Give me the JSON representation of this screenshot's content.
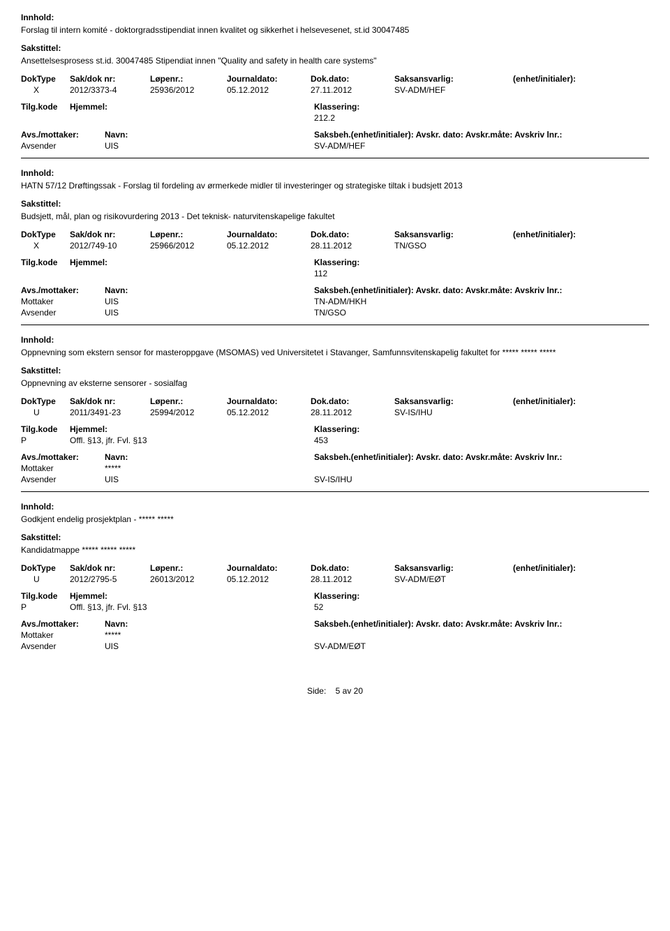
{
  "labels": {
    "innhold": "Innhold:",
    "sakstittel": "Sakstittel:",
    "doktype": "DokType",
    "sakdok": "Sak/dok nr:",
    "lopenr": "Løpenr.:",
    "journaldato": "Journaldato:",
    "dokdato": "Dok.dato:",
    "saksansvarlig": "Saksansvarlig:",
    "enhet": "(enhet/initialer):",
    "tilgkode": "Tilg.kode",
    "hjemmel": "Hjemmel:",
    "klassering": "Klassering:",
    "avsmottaker": "Avs./mottaker:",
    "navn": "Navn:",
    "saksbeh_full": "Saksbeh.(enhet/initialer): Avskr. dato: Avskr.måte: Avskriv lnr.:",
    "mottaker": "Mottaker",
    "avsender": "Avsender",
    "side": "Side:",
    "page_of": "5  av  20"
  },
  "entries": [
    {
      "innhold": "Forslag til intern komité - doktorgradsstipendiat innen kvalitet og sikkerhet i helsevesenet, st.id 30047485",
      "sakstittel": "Ansettelsesprosess st.id. 30047485 Stipendiat innen \"Quality and safety in health care systems\"",
      "doktype": "X",
      "sakdok": "2012/3373-4",
      "lopenr": "25936/2012",
      "jdato": "05.12.2012",
      "ddato": "27.11.2012",
      "ansvarlig": "SV-ADM/HEF",
      "tilg": "",
      "hjemmel": "",
      "klass": "212.2",
      "parties": [
        {
          "role": "Avsender",
          "name": "UIS",
          "code": "SV-ADM/HEF"
        }
      ]
    },
    {
      "innhold": "HATN 57/12 Drøftingssak - Forslag til fordeling av ørmerkede midler til investeringer og strategiske tiltak i budsjett 2013",
      "sakstittel": "Budsjett, mål, plan og risikovurdering 2013 - Det teknisk- naturvitenskapelige fakultet",
      "doktype": "X",
      "sakdok": "2012/749-10",
      "lopenr": "25966/2012",
      "jdato": "05.12.2012",
      "ddato": "28.11.2012",
      "ansvarlig": "TN/GSO",
      "tilg": "",
      "hjemmel": "",
      "klass": "112",
      "parties": [
        {
          "role": "Mottaker",
          "name": "UIS",
          "code": "TN-ADM/HKH"
        },
        {
          "role": "Avsender",
          "name": "UIS",
          "code": "TN/GSO"
        }
      ]
    },
    {
      "innhold": "Oppnevning som ekstern sensor for masteroppgave (MSOMAS) ved Universitetet i Stavanger, Samfunnsvitenskapelig fakultet for ***** ***** *****",
      "sakstittel": "Oppnevning av eksterne sensorer - sosialfag",
      "doktype": "U",
      "sakdok": "2011/3491-23",
      "lopenr": "25994/2012",
      "jdato": "05.12.2012",
      "ddato": "28.11.2012",
      "ansvarlig": "SV-IS/IHU",
      "tilg": "P",
      "hjemmel": "Offl. §13, jfr. Fvl. §13",
      "klass": "453",
      "parties": [
        {
          "role": "Mottaker",
          "name": "*****",
          "code": ""
        },
        {
          "role": "Avsender",
          "name": "UIS",
          "code": "SV-IS/IHU"
        }
      ]
    },
    {
      "innhold": "Godkjent endelig prosjektplan - ***** *****",
      "sakstittel": "Kandidatmappe ***** ***** *****",
      "doktype": "U",
      "sakdok": "2012/2795-5",
      "lopenr": "26013/2012",
      "jdato": "05.12.2012",
      "ddato": "28.11.2012",
      "ansvarlig": "SV-ADM/EØT",
      "tilg": "P",
      "hjemmel": "Offl. §13, jfr. Fvl. §13",
      "klass": "52",
      "parties": [
        {
          "role": "Mottaker",
          "name": "*****",
          "code": ""
        },
        {
          "role": "Avsender",
          "name": "UIS",
          "code": "SV-ADM/EØT"
        }
      ]
    }
  ]
}
